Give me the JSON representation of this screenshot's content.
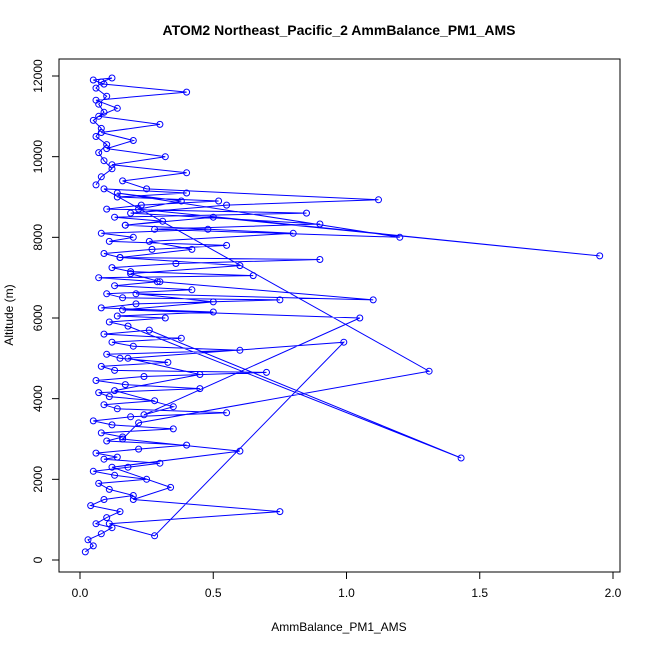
{
  "chart_data": {
    "type": "scatter",
    "title": "ATOM2 Northeast_Pacific_2 AmmBalance_PM1_AMS",
    "xlabel": "AmmBalance_PM1_AMS",
    "ylabel": "Altitude (m)",
    "xlim": [
      0.0,
      2.0
    ],
    "ylim": [
      0,
      12000
    ],
    "xticks": [
      "0.0",
      "0.5",
      "1.0",
      "1.5",
      "2.0"
    ],
    "yticks": [
      "0",
      "2000",
      "4000",
      "6000",
      "8000",
      "10000",
      "12000"
    ],
    "grid": false,
    "legend": "none",
    "line_color": "#0000ff",
    "marker": "open-circle",
    "series": [
      {
        "x": [
          0.02,
          0.05,
          0.03,
          0.08,
          0.12,
          0.06,
          0.1,
          0.15,
          0.04,
          0.09,
          0.2,
          0.11,
          0.07,
          0.25,
          0.13,
          0.05,
          0.18,
          0.3,
          0.09,
          0.14,
          0.06,
          0.22,
          0.4,
          0.1,
          0.16,
          0.08,
          0.35,
          0.12,
          0.05,
          0.19,
          0.55,
          0.14,
          0.09,
          0.28,
          0.11,
          0.07,
          0.45,
          0.17,
          0.06,
          0.24,
          0.7,
          0.13,
          0.08,
          0.33,
          0.15,
          0.1,
          0.6,
          0.2,
          0.12,
          0.38,
          0.09,
          0.26,
          1.43,
          0.18,
          0.11,
          0.32,
          0.14,
          0.5,
          0.08,
          0.21,
          0.75,
          0.16,
          0.1,
          0.42,
          0.13,
          0.29,
          0.07,
          0.65,
          0.19,
          0.12,
          0.36,
          0.9,
          0.15,
          0.09,
          0.27,
          0.55,
          0.11,
          0.2,
          0.08,
          0.48,
          0.17,
          0.31,
          0.13,
          0.85,
          0.1,
          0.23,
          0.52,
          0.14,
          0.4,
          0.09,
          1.31,
          0.22,
          0.16,
          0.6,
          0.12,
          0.34,
          0.2,
          0.75,
          0.11,
          0.28,
          0.99,
          0.18,
          0.45,
          0.13,
          0.35,
          0.24,
          1.05,
          0.16,
          0.5,
          0.21,
          1.1,
          0.3,
          0.19,
          0.6,
          0.15,
          0.42,
          0.26,
          0.8,
          0.17,
          0.5,
          1.95,
          0.22,
          0.38,
          0.14,
          1.2,
          0.28,
          0.9,
          0.19,
          0.55,
          1.12,
          0.25,
          0.16,
          0.4,
          0.12,
          0.32,
          0.1,
          0.2,
          0.08,
          0.3,
          0.07,
          0.14,
          0.06,
          0.4,
          0.09,
          0.05,
          0.12,
          0.08,
          0.06,
          0.1,
          0.07,
          0.09,
          0.05,
          0.08,
          0.06,
          0.1,
          0.07,
          0.09,
          0.12,
          0.08,
          0.06
        ],
        "y": [
          200,
          350,
          500,
          650,
          800,
          900,
          1050,
          1200,
          1350,
          1500,
          1600,
          1750,
          1900,
          2000,
          2100,
          2200,
          2300,
          2400,
          2500,
          2550,
          2650,
          2750,
          2850,
          2950,
          3050,
          3150,
          3250,
          3350,
          3450,
          3550,
          3650,
          3750,
          3850,
          3950,
          4050,
          4150,
          4250,
          4350,
          4450,
          4550,
          4650,
          4700,
          4800,
          4900,
          5000,
          5100,
          5200,
          5300,
          5400,
          5500,
          5600,
          5700,
          2530,
          5800,
          5900,
          6000,
          6050,
          6150,
          6250,
          6350,
          6450,
          6500,
          6600,
          6700,
          6800,
          6900,
          7000,
          7050,
          7150,
          7250,
          7350,
          7450,
          7500,
          7600,
          7700,
          7800,
          7900,
          8000,
          8100,
          8200,
          8300,
          8400,
          8500,
          8600,
          8700,
          8800,
          8900,
          9000,
          9100,
          9200,
          4680,
          3400,
          3000,
          2700,
          2300,
          1800,
          1500,
          1200,
          900,
          600,
          5400,
          5000,
          4600,
          4200,
          3800,
          3600,
          6000,
          6200,
          6400,
          6600,
          6450,
          6900,
          7100,
          7300,
          7500,
          7700,
          7900,
          8100,
          8300,
          8500,
          7540,
          8700,
          8900,
          9100,
          8000,
          8200,
          8330,
          8600,
          8800,
          8930,
          9200,
          9400,
          9600,
          9800,
          10000,
          10200,
          10400,
          10600,
          10800,
          11000,
          11200,
          11400,
          11600,
          11800,
          11900,
          11950,
          11850,
          11700,
          11500,
          11300,
          11100,
          10900,
          10700,
          10500,
          10300,
          10100,
          9900,
          9700,
          9500,
          9300
        ]
      }
    ]
  }
}
